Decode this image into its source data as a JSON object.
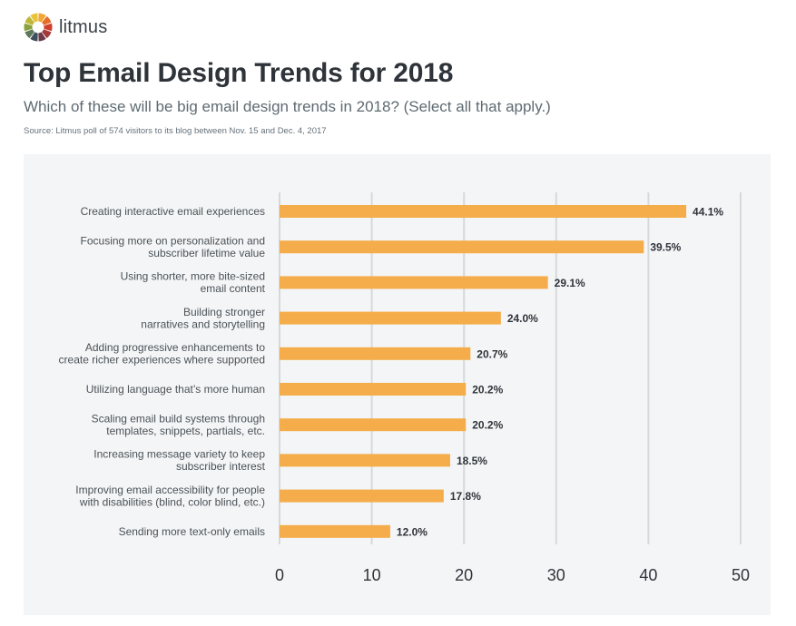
{
  "header": {
    "brand": "litmus",
    "title": "Top Email Design Trends for 2018",
    "subtitle": "Which of these will be big email design trends in 2018? (Select all that apply.)",
    "source": "Source: Litmus poll of 574 visitors to its blog between Nov. 15 and Dec. 4, 2017"
  },
  "colors": {
    "bar": "#f4ad4a",
    "gridline": "#d6d9db",
    "panel": "#f4f5f6",
    "label": "#4a5258",
    "value_label": "#2f343a",
    "tick": "#2f343a",
    "logo_segments": [
      "#f2a634",
      "#e46f2a",
      "#d0402e",
      "#a33a3c",
      "#6b3b4a",
      "#3f4f5c",
      "#5c7a5a",
      "#8aa23e",
      "#c0b73a",
      "#e8c33a"
    ]
  },
  "chart_data": {
    "type": "bar",
    "orientation": "horizontal",
    "categories": [
      [
        "Creating interactive email experiences"
      ],
      [
        "Focusing more on personalization and",
        "subscriber lifetime value"
      ],
      [
        "Using shorter, more bite-sized",
        "email content"
      ],
      [
        "Building stronger",
        "narratives and storytelling"
      ],
      [
        "Adding progressive enhancements to",
        "create richer experiences where supported"
      ],
      [
        "Utilizing language that’s more human"
      ],
      [
        "Scaling email build systems through",
        "templates, snippets, partials, etc."
      ],
      [
        "Increasing message variety to keep",
        "subscriber interest"
      ],
      [
        "Improving email accessibility for people",
        "with disabilities (blind, color blind, etc.)"
      ],
      [
        "Sending more text-only emails"
      ]
    ],
    "values": [
      44.1,
      39.5,
      29.1,
      24.0,
      20.7,
      20.2,
      20.2,
      18.5,
      17.8,
      12.0
    ],
    "value_labels": [
      "44.1%",
      "39.5%",
      "29.1%",
      "24.0%",
      "20.7%",
      "20.2%",
      "20.2%",
      "18.5%",
      "17.8%",
      "12.0%"
    ],
    "xlim": [
      0,
      50
    ],
    "xticks": [
      0,
      10,
      20,
      30,
      40,
      50
    ],
    "grid": true,
    "legend": "none"
  }
}
